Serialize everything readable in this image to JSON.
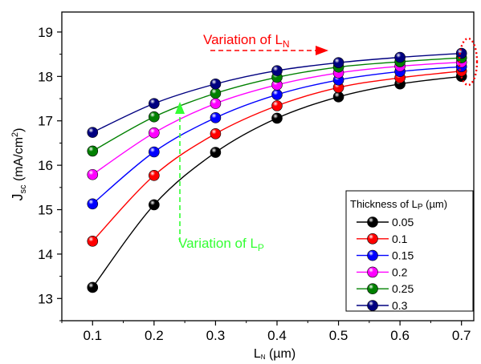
{
  "chart_data": {
    "type": "line",
    "ylabel_main": "J",
    "ylabel_sub": "sc",
    "ylabel_rest": " (mA/cm",
    "ylabel_sup": "2",
    "ylabel_end": ")",
    "xlabel_main": "L",
    "xlabel_sub": "N",
    "xlabel_rest": " (µm)",
    "x": [
      0.1,
      0.2,
      0.3,
      0.4,
      0.5,
      0.6,
      0.7
    ],
    "xlim": [
      0.05,
      0.72
    ],
    "ylim": [
      12.5,
      19.45
    ],
    "x_ticks": [
      "0.1",
      "0.2",
      "0.3",
      "0.4",
      "0.5",
      "0.6",
      "0.7"
    ],
    "y_ticks": [
      "13",
      "14",
      "15",
      "16",
      "17",
      "18",
      "19"
    ],
    "legend_title_main": "Thickness of L",
    "legend_title_sub": "P",
    "legend_title_rest": " (µm)",
    "legend_position": "lower-right",
    "series": [
      {
        "name": "0.05",
        "color": "#000000",
        "values": [
          13.25,
          15.11,
          16.29,
          17.06,
          17.54,
          17.83,
          18.0
        ]
      },
      {
        "name": "0.1",
        "color": "#ff0000",
        "values": [
          14.29,
          15.77,
          16.71,
          17.34,
          17.75,
          17.97,
          18.12
        ]
      },
      {
        "name": "0.15",
        "color": "#0000ff",
        "values": [
          15.13,
          16.3,
          17.07,
          17.59,
          17.92,
          18.11,
          18.22
        ]
      },
      {
        "name": "0.2",
        "color": "#ff00ff",
        "values": [
          15.79,
          16.73,
          17.39,
          17.81,
          18.08,
          18.23,
          18.32
        ]
      },
      {
        "name": "0.25",
        "color": "#008000",
        "values": [
          16.32,
          17.09,
          17.62,
          17.98,
          18.21,
          18.33,
          18.42
        ]
      },
      {
        "name": "0.3",
        "color": "#000080",
        "values": [
          16.74,
          17.39,
          17.83,
          18.13,
          18.31,
          18.43,
          18.52
        ]
      }
    ],
    "annotations": {
      "ln_text": "Variation of L",
      "ln_sub": "N",
      "lp_text": "Variation of L",
      "lp_sub": "P"
    }
  }
}
